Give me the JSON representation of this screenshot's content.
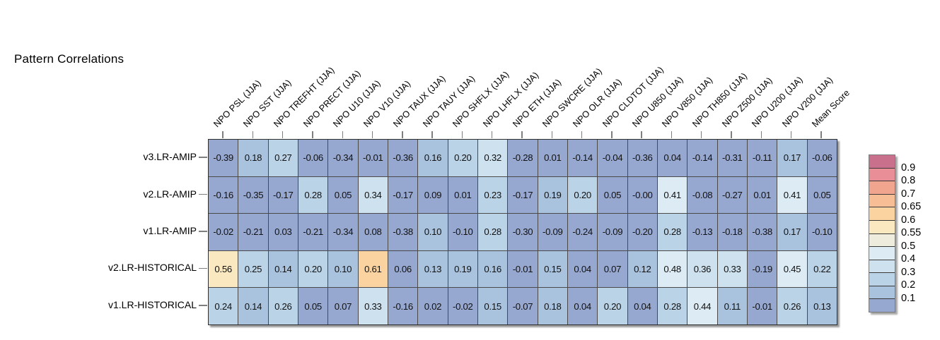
{
  "title": "Pattern Correlations",
  "chart_data": {
    "type": "heatmap",
    "title": "Pattern Correlations",
    "columns": [
      "NPO PSL (JJA)",
      "NPO SST (JJA)",
      "NPO TREFHT (JJA)",
      "NPO PRECT (JJA)",
      "NPO U10 (JJA)",
      "NPO V10 (JJA)",
      "NPO TAUX (JJA)",
      "NPO TAUY (JJA)",
      "NPO SHFLX (JJA)",
      "NPO LHFLX (JJA)",
      "NPO ETH (JJA)",
      "NPO SWCRE (JJA)",
      "NPO OLR (JJA)",
      "NPO CLDTOT (JJA)",
      "NPO U850 (JJA)",
      "NPO V850 (JJA)",
      "NPO TH850 (JJA)",
      "NPO Z500 (JJA)",
      "NPO U200 (JJA)",
      "NPO V200 (JJA)",
      "Mean Score"
    ],
    "rows": [
      {
        "label": "v3.LR-AMIP",
        "values": [
          "-0.39",
          "0.18",
          "0.27",
          "-0.06",
          "-0.34",
          "-0.01",
          "-0.36",
          "0.16",
          "0.20",
          "0.32",
          "-0.28",
          "0.01",
          "-0.14",
          "-0.04",
          "-0.36",
          "0.04",
          "-0.14",
          "-0.31",
          "-0.11",
          "0.17",
          "-0.06"
        ]
      },
      {
        "label": "v2.LR-AMIP",
        "values": [
          "-0.16",
          "-0.35",
          "-0.17",
          "0.28",
          "0.05",
          "0.34",
          "-0.17",
          "0.09",
          "0.01",
          "0.23",
          "-0.17",
          "0.19",
          "0.20",
          "0.05",
          "-0.00",
          "0.41",
          "-0.08",
          "-0.27",
          "0.01",
          "0.41",
          "0.05"
        ]
      },
      {
        "label": "v1.LR-AMIP",
        "values": [
          "-0.02",
          "-0.21",
          "0.03",
          "-0.21",
          "-0.34",
          "0.08",
          "-0.38",
          "0.10",
          "-0.10",
          "0.28",
          "-0.30",
          "-0.09",
          "-0.24",
          "-0.09",
          "-0.20",
          "0.28",
          "-0.13",
          "-0.18",
          "-0.38",
          "0.17",
          "-0.10"
        ]
      },
      {
        "label": "v2.LR-HISTORICAL",
        "values": [
          "0.56",
          "0.25",
          "0.14",
          "0.20",
          "0.10",
          "0.61",
          "0.06",
          "0.13",
          "0.19",
          "0.16",
          "-0.01",
          "0.15",
          "0.04",
          "0.07",
          "0.12",
          "0.48",
          "0.36",
          "0.33",
          "-0.19",
          "0.45",
          "0.22"
        ]
      },
      {
        "label": "v1.LR-HISTORICAL",
        "values": [
          "0.24",
          "0.14",
          "0.26",
          "0.05",
          "0.07",
          "0.33",
          "-0.16",
          "0.02",
          "-0.02",
          "0.15",
          "-0.07",
          "0.18",
          "0.04",
          "0.20",
          "0.04",
          "0.28",
          "0.44",
          "0.11",
          "-0.01",
          "0.26",
          "0.13"
        ]
      }
    ],
    "legend": {
      "position": "right",
      "boundary_labels_top_to_bottom": [
        "0.9",
        "0.8",
        "0.7",
        "0.65",
        "0.6",
        "0.55",
        "0.5",
        "0.4",
        "0.3",
        "0.2",
        "0.1"
      ],
      "band_colors_top_to_bottom": [
        "#c9708c",
        "#e98d96",
        "#f2a58e",
        "#f7bd94",
        "#fbd3a0",
        "#fae8c0",
        "#edecdd",
        "#ddecf4",
        "#cde1ee",
        "#bbd3e7",
        "#a9c3de",
        "#96a7d0"
      ],
      "thresholds_ascending": [
        0.1,
        0.2,
        0.3,
        0.4,
        0.5,
        0.55,
        0.6,
        0.65,
        0.7,
        0.8,
        0.9
      ]
    },
    "layout": {
      "column_labels_rotation_deg": 45,
      "grid_on": true
    }
  }
}
